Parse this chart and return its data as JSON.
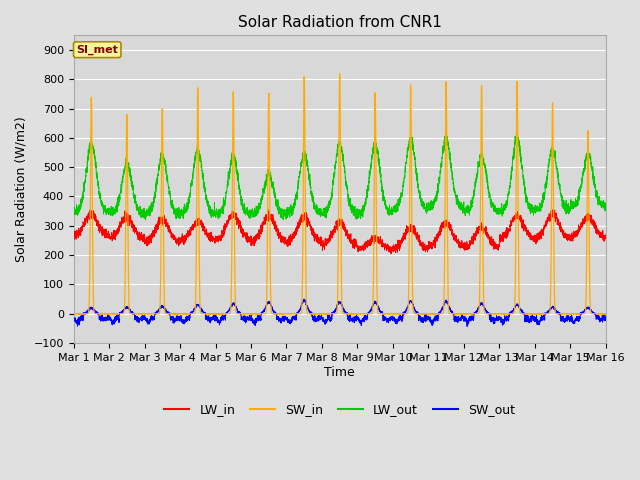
{
  "title": "Solar Radiation from CNR1",
  "xlabel": "Time",
  "ylabel": "Solar Radiation (W/m2)",
  "ylim": [
    -100,
    950
  ],
  "yticks": [
    -100,
    0,
    100,
    200,
    300,
    400,
    500,
    600,
    700,
    800,
    900
  ],
  "num_days": 15,
  "ppd": 288,
  "annotation": "SI_met",
  "colors": {
    "LW_in": "#ff0000",
    "SW_in": "#ffaa00",
    "LW_out": "#00cc00",
    "SW_out": "#0000ff"
  },
  "sw_in_peaks": [
    740,
    680,
    700,
    770,
    760,
    750,
    810,
    820,
    755,
    775,
    795,
    780,
    797,
    720,
    625
  ],
  "lw_in_day_peaks": [
    340,
    330,
    320,
    315,
    340,
    335,
    330,
    310,
    255,
    295,
    310,
    295,
    335,
    340,
    330
  ],
  "lw_in_bases": [
    265,
    255,
    245,
    250,
    250,
    245,
    245,
    235,
    220,
    220,
    230,
    225,
    255,
    255,
    260
  ],
  "lw_out_peaks": [
    580,
    510,
    540,
    555,
    535,
    475,
    545,
    580,
    575,
    595,
    595,
    540,
    600,
    560,
    545
  ],
  "lw_out_bases": [
    350,
    345,
    340,
    345,
    340,
    340,
    345,
    345,
    345,
    360,
    365,
    350,
    350,
    355,
    370
  ],
  "sw_out_peaks": [
    20,
    22,
    25,
    30,
    35,
    40,
    45,
    40,
    38,
    42,
    42,
    35,
    30,
    22,
    20
  ],
  "background_color": "#e0e0e0",
  "inner_background": "#d8d8d8",
  "upper_background": "#c8c8c8",
  "grid_color": "#ffffff",
  "title_fontsize": 11,
  "label_fontsize": 9,
  "tick_fontsize": 8,
  "legend_fontsize": 9,
  "annotation_color": "#8b0000",
  "annotation_bg": "#f5f5a0",
  "annotation_edge": "#aa8800"
}
